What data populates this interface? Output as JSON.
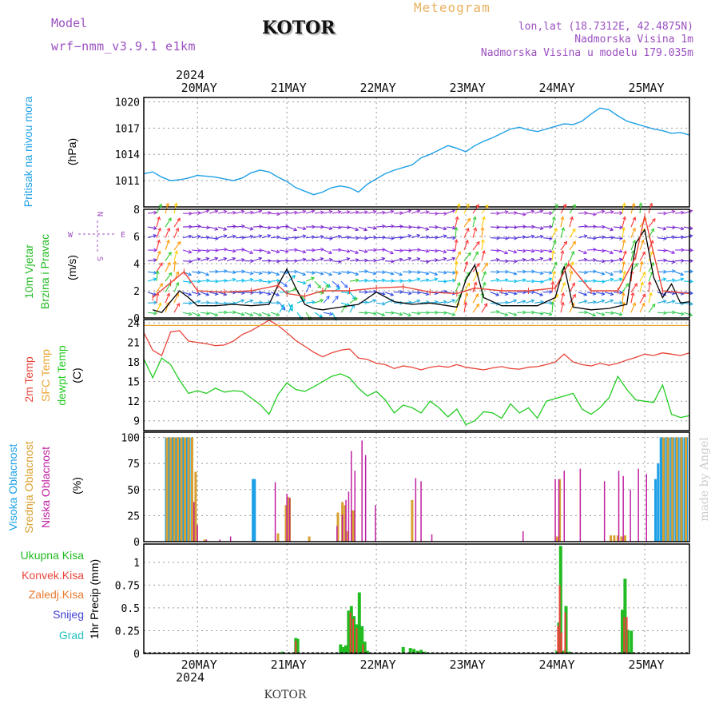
{
  "header": {
    "model_label": "Model",
    "model_value": "wrf−nmm_v3.9.1  e1km",
    "station": "KOTOR",
    "meteogram": "Meteogram",
    "lonlat": "lon,lat (18.7312E, 42.4875N)",
    "altitude": "Nadmorska Visina 1m",
    "model_altitude": "Nadmorska Visina u modelu 179.035m",
    "year_top": "2024",
    "year_bottom": "2024",
    "footer_station": "KOTOR",
    "watermark": "made by Angel"
  },
  "colors": {
    "pressure": "#1ea0e6",
    "wind_label": "#22bb22",
    "temp2m": "#e8443a",
    "sfc_temp": "#e8a530",
    "dewpt": "#22cc22",
    "cloud_high": "#1ea0e6",
    "cloud_mid": "#d8a030",
    "cloud_low": "#c020a0",
    "precip_total": "#22bb22",
    "precip_conv": "#e8443a",
    "precip_frz": "#e87a30",
    "snow": "#4040d0",
    "hail": "#22c0c0",
    "compass": "#a050c0",
    "header_purple": "#9b4fc0",
    "meteogram": "#e8b060"
  },
  "chart_data": [
    {
      "type": "line",
      "name": "pressure",
      "ylabel": [
        "Pritisak na nivou mora",
        "(hPa)"
      ],
      "ylim": [
        1008,
        1020.5
      ],
      "yticks": [
        1011,
        1014,
        1017,
        1020
      ],
      "grid": true,
      "x_unit": "days since 2024-05-20 00UTC",
      "x_day_labels": [
        "20MAY",
        "21MAY",
        "22MAY",
        "23MAY",
        "24MAY",
        "25MAY"
      ],
      "series": [
        {
          "x": [
            -0.6,
            -0.5,
            -0.4,
            -0.3,
            -0.2,
            -0.1,
            0.0,
            0.1,
            0.2,
            0.3,
            0.4,
            0.5,
            0.6,
            0.7,
            0.8,
            0.9,
            1.0,
            1.1,
            1.2,
            1.3,
            1.4,
            1.5,
            1.6,
            1.7,
            1.8,
            1.9,
            2.0,
            2.1,
            2.2,
            2.3,
            2.4,
            2.5,
            2.6,
            2.7,
            2.8,
            2.9,
            3.0,
            3.1,
            3.2,
            3.3,
            3.4,
            3.5,
            3.6,
            3.7,
            3.8,
            3.9,
            4.0,
            4.1,
            4.2,
            4.3,
            4.4,
            4.5,
            4.6,
            4.7,
            4.8,
            4.9,
            5.0,
            5.1,
            5.2,
            5.3,
            5.4,
            5.5
          ],
          "y": [
            1011.8,
            1012.0,
            1011.4,
            1011.0,
            1011.1,
            1011.3,
            1011.6,
            1011.5,
            1011.4,
            1011.2,
            1011.0,
            1011.3,
            1011.9,
            1012.2,
            1012.0,
            1011.4,
            1010.9,
            1010.2,
            1009.8,
            1009.4,
            1009.7,
            1010.2,
            1010.4,
            1010.2,
            1009.7,
            1010.6,
            1011.2,
            1011.8,
            1012.2,
            1012.5,
            1012.8,
            1013.6,
            1014.0,
            1014.5,
            1015.0,
            1014.7,
            1014.3,
            1015.0,
            1015.5,
            1015.9,
            1016.4,
            1016.9,
            1017.1,
            1016.8,
            1016.6,
            1016.9,
            1017.2,
            1017.5,
            1017.4,
            1017.8,
            1018.6,
            1019.3,
            1019.1,
            1018.4,
            1017.8,
            1017.5,
            1017.2,
            1016.9,
            1016.7,
            1016.4,
            1016.5,
            1016.2
          ]
        }
      ]
    },
    {
      "type": "line",
      "name": "wind",
      "ylabel": [
        "10m Vjetar",
        "Brzina i Pravac",
        "(m/s)"
      ],
      "compass": [
        "N",
        "E",
        "S",
        "W"
      ],
      "ylim": [
        0,
        8
      ],
      "yticks": [
        0,
        2,
        4,
        6,
        8
      ],
      "grid": true,
      "arrow_levels": [
        {
          "y": 7.7,
          "color": "#9933cc"
        },
        {
          "y": 6.7,
          "color": "#7722cc"
        },
        {
          "y": 5.9,
          "color": "#5533dd"
        },
        {
          "y": 5.0,
          "color": "#8a2be2"
        },
        {
          "y": 4.2,
          "color": "#6a22cc"
        },
        {
          "y": 3.4,
          "color": "#2288ee"
        },
        {
          "y": 2.7,
          "color": "#00bbee"
        },
        {
          "y": 1.9,
          "color": "#3344dd"
        },
        {
          "y": 1.1,
          "color": "#22aadd"
        },
        {
          "y": 0.4,
          "color": "#33cc55"
        }
      ],
      "series": [
        {
          "name": "speed",
          "color": "#000000",
          "x": [
            -0.5,
            -0.4,
            -0.3,
            -0.2,
            -0.1,
            0.0,
            0.2,
            0.4,
            0.6,
            0.8,
            0.9,
            1.0,
            1.1,
            1.2,
            1.3,
            1.4,
            1.6,
            1.8,
            2.0,
            2.2,
            2.4,
            2.6,
            2.8,
            2.9,
            3.0,
            3.1,
            3.2,
            3.4,
            3.6,
            3.8,
            4.0,
            4.1,
            4.2,
            4.4,
            4.6,
            4.8,
            4.9,
            5.0,
            5.1,
            5.2,
            5.3,
            5.4,
            5.5
          ],
          "y": [
            0.6,
            0.4,
            1.2,
            2.0,
            1.5,
            0.9,
            0.9,
            1.0,
            0.9,
            1.0,
            2.4,
            3.6,
            2.2,
            1.0,
            0.7,
            0.6,
            0.8,
            1.0,
            1.9,
            1.2,
            1.0,
            1.1,
            0.9,
            0.8,
            2.8,
            3.9,
            1.5,
            0.9,
            0.9,
            0.9,
            1.5,
            3.8,
            0.8,
            0.6,
            0.7,
            1.0,
            5.5,
            6.5,
            3.0,
            1.5,
            2.5,
            1.1,
            1.2
          ]
        },
        {
          "name": "gust",
          "color": "#e8443a",
          "x": [
            -0.5,
            -0.3,
            -0.15,
            0.0,
            0.3,
            0.6,
            0.9,
            1.0,
            1.2,
            1.4,
            1.7,
            2.0,
            2.3,
            2.6,
            2.9,
            3.1,
            3.4,
            3.7,
            4.0,
            4.15,
            4.4,
            4.7,
            4.9,
            5.0,
            5.2,
            5.5
          ],
          "y": [
            1.5,
            2.6,
            3.4,
            2.0,
            1.9,
            2.0,
            2.4,
            1.8,
            1.6,
            2.0,
            2.0,
            2.2,
            2.3,
            1.9,
            1.8,
            2.2,
            2.0,
            2.0,
            2.2,
            4.0,
            2.0,
            2.0,
            4.5,
            7.5,
            2.0,
            1.8
          ]
        }
      ]
    },
    {
      "type": "line",
      "name": "temperature",
      "ylabel": [
        "2m Temp",
        "SFC Temp",
        "dewpt Temp",
        "(C)"
      ],
      "ylim": [
        7.5,
        24.5
      ],
      "yticks": [
        9,
        12,
        15,
        18,
        21,
        24
      ],
      "grid": true,
      "series": [
        {
          "name": "2m Temp",
          "color": "#e8443a",
          "x": [
            -0.6,
            -0.5,
            -0.4,
            -0.3,
            -0.2,
            -0.1,
            0.0,
            0.1,
            0.2,
            0.3,
            0.4,
            0.5,
            0.6,
            0.7,
            0.8,
            0.9,
            1.0,
            1.1,
            1.2,
            1.3,
            1.4,
            1.5,
            1.6,
            1.7,
            1.8,
            1.9,
            2.0,
            2.1,
            2.2,
            2.3,
            2.4,
            2.5,
            2.6,
            2.7,
            2.8,
            2.9,
            3.0,
            3.1,
            3.2,
            3.3,
            3.4,
            3.5,
            3.6,
            3.7,
            3.8,
            3.9,
            4.0,
            4.1,
            4.2,
            4.3,
            4.4,
            4.5,
            4.6,
            4.7,
            4.8,
            4.9,
            5.0,
            5.1,
            5.2,
            5.3,
            5.4,
            5.5
          ],
          "y": [
            22.5,
            19.8,
            19.0,
            22.6,
            22.8,
            21.2,
            21.0,
            20.8,
            20.5,
            20.6,
            21.2,
            22.2,
            22.8,
            23.6,
            24.4,
            23.6,
            22.5,
            21.3,
            20.4,
            19.5,
            18.8,
            19.4,
            19.8,
            20.0,
            18.6,
            18.4,
            17.8,
            17.6,
            17.0,
            17.4,
            17.2,
            16.8,
            17.2,
            17.4,
            17.2,
            17.6,
            17.2,
            17.0,
            16.8,
            17.1,
            17.3,
            17.0,
            16.9,
            17.2,
            17.3,
            17.6,
            18.0,
            19.2,
            18.0,
            17.6,
            17.4,
            17.8,
            17.5,
            17.8,
            18.3,
            18.7,
            19.2,
            19.0,
            19.4,
            19.2,
            19.0,
            19.4
          ]
        },
        {
          "name": "SFC Temp",
          "color": "#e8a530",
          "x": [
            -0.6,
            5.5
          ],
          "y": [
            23.6,
            23.6
          ]
        },
        {
          "name": "dewpt Temp",
          "color": "#22cc22",
          "x": [
            -0.6,
            -0.5,
            -0.4,
            -0.3,
            -0.2,
            -0.1,
            0.0,
            0.1,
            0.2,
            0.3,
            0.4,
            0.5,
            0.6,
            0.7,
            0.8,
            0.9,
            1.0,
            1.1,
            1.2,
            1.3,
            1.4,
            1.5,
            1.6,
            1.7,
            1.8,
            1.9,
            2.0,
            2.1,
            2.2,
            2.3,
            2.4,
            2.5,
            2.6,
            2.7,
            2.8,
            2.9,
            3.0,
            3.1,
            3.2,
            3.3,
            3.4,
            3.5,
            3.6,
            3.7,
            3.8,
            3.9,
            4.0,
            4.1,
            4.2,
            4.3,
            4.4,
            4.5,
            4.6,
            4.7,
            4.8,
            4.9,
            5.0,
            5.1,
            5.2,
            5.3,
            5.4,
            5.5
          ],
          "y": [
            18.5,
            15.6,
            18.6,
            17.6,
            15.2,
            13.2,
            13.6,
            13.2,
            14.0,
            13.4,
            13.6,
            13.5,
            12.5,
            11.5,
            10.0,
            13.0,
            14.8,
            13.8,
            13.5,
            14.2,
            15.0,
            15.8,
            16.2,
            15.6,
            14.0,
            12.8,
            13.5,
            12.2,
            10.2,
            11.4,
            11.0,
            10.2,
            12.0,
            11.0,
            9.6,
            10.8,
            8.4,
            9.0,
            10.4,
            10.2,
            9.4,
            11.6,
            10.2,
            11.0,
            9.4,
            12.0,
            12.4,
            12.8,
            13.2,
            10.8,
            10.0,
            11.0,
            12.5,
            15.8,
            13.8,
            12.2,
            12.0,
            11.8,
            14.5,
            10.0,
            9.5,
            9.8
          ]
        }
      ]
    },
    {
      "type": "bar",
      "name": "cloudiness",
      "ylabel": [
        "Visoka Oblacnost",
        "Srednja Oblacnost",
        "Niska Oblacnost",
        "(%)"
      ],
      "ylim": [
        0,
        105
      ],
      "yticks": [
        0,
        25,
        50,
        75,
        100
      ],
      "grid": true,
      "series": [
        {
          "name": "Visoka Oblacnost",
          "color": "#1ea0e6",
          "x": [
            -0.35,
            -0.33,
            -0.31,
            -0.29,
            -0.27,
            -0.25,
            -0.23,
            -0.21,
            -0.19,
            -0.17,
            -0.15,
            -0.13,
            -0.11,
            -0.09,
            0.62,
            0.63,
            0.64,
            5.12,
            5.15,
            5.18,
            5.2,
            5.22,
            5.25,
            5.27,
            5.3,
            5.32,
            5.35,
            5.37,
            5.4,
            5.42,
            5.45,
            5.47
          ],
          "values": [
            100,
            100,
            100,
            100,
            100,
            100,
            100,
            100,
            100,
            100,
            100,
            100,
            100,
            100,
            60,
            60,
            60,
            60,
            75,
            100,
            100,
            100,
            100,
            100,
            100,
            100,
            100,
            100,
            100,
            100,
            100,
            100
          ]
        },
        {
          "name": "Srednja Oblacnost",
          "color": "#d8a030",
          "x": [
            -0.34,
            -0.3,
            -0.26,
            -0.22,
            -0.18,
            -0.14,
            -0.1,
            -0.06,
            -0.02,
            0.08,
            0.9,
            0.99,
            1.01,
            1.03,
            1.25,
            1.57,
            1.62,
            1.65,
            1.68,
            1.74,
            2.4,
            4.02,
            4.05,
            4.62,
            4.66,
            4.7,
            4.74,
            4.78,
            5.21,
            5.26,
            5.31,
            5.36,
            5.41,
            5.46
          ],
          "values": [
            100,
            100,
            100,
            100,
            100,
            100,
            100,
            100,
            67,
            2,
            8,
            35,
            43,
            42,
            5,
            28,
            38,
            35,
            10,
            30,
            40,
            5,
            60,
            6,
            6,
            6,
            5,
            6,
            100,
            100,
            100,
            100,
            100,
            100
          ]
        },
        {
          "name": "Niska Oblacnost",
          "color": "#c020a0",
          "x": [
            -0.04,
            0.0,
            0.1,
            0.25,
            0.37,
            0.87,
            1.0,
            1.03,
            1.56,
            1.62,
            1.66,
            1.69,
            1.72,
            1.76,
            1.84,
            1.88,
            1.99,
            2.44,
            2.5,
            2.62,
            3.64,
            4.0,
            4.04,
            4.1,
            4.28,
            4.55,
            4.71,
            4.76,
            4.84,
            4.93,
            5.02
          ],
          "values": [
            38,
            16,
            2,
            2,
            5,
            57,
            46,
            42,
            15,
            26,
            40,
            48,
            87,
            68,
            97,
            83,
            35,
            61,
            58,
            7,
            10,
            60,
            60,
            68,
            70,
            58,
            68,
            63,
            50,
            70,
            65
          ]
        }
      ]
    },
    {
      "type": "bar",
      "name": "precipitation",
      "ylabel": [
        "1hr Precip (mm)"
      ],
      "legend": [
        "Ukupna Kisa",
        "Konvek.Kisa",
        "Zaledj.Kisa",
        "Snijeg",
        "Grad"
      ],
      "ylim": [
        0,
        1.2
      ],
      "yticks": [
        0,
        0.25,
        0.5,
        0.75,
        1
      ],
      "grid": true,
      "series": [
        {
          "name": "Ukupna Kisa",
          "color": "#22bb22",
          "x": [
            0.75,
            0.95,
            1.1,
            1.12,
            1.6,
            1.63,
            1.66,
            1.69,
            1.72,
            1.75,
            1.78,
            1.81,
            1.84,
            1.87,
            1.9,
            2.3,
            2.38,
            2.42,
            2.46,
            2.5,
            2.54,
            2.58,
            4.02,
            4.04,
            4.06,
            4.09,
            4.12,
            4.16,
            4.75,
            4.78,
            4.81,
            4.85
          ],
          "values": [
            0.005,
            0.02,
            0.17,
            0.16,
            0.1,
            0.07,
            0.09,
            0.47,
            0.52,
            0.41,
            0.32,
            0.67,
            0.3,
            0.13,
            0.03,
            0.07,
            0.06,
            0.05,
            0.03,
            0.04,
            0.02,
            0.01,
            0.03,
            0.34,
            1.18,
            0.03,
            0.52,
            0.02,
            0.48,
            0.82,
            0.26,
            0.25
          ]
        },
        {
          "name": "Konvek.Kisa",
          "color": "#e8443a",
          "x": [
            1.1,
            1.71,
            1.74,
            1.78,
            1.85,
            4.03,
            4.05,
            4.07,
            4.11,
            4.77,
            4.8
          ],
          "values": [
            0.14,
            0.45,
            0.38,
            0.28,
            0.1,
            0.3,
            0.75,
            0.23,
            0.45,
            0.4,
            0.4
          ]
        }
      ]
    }
  ]
}
